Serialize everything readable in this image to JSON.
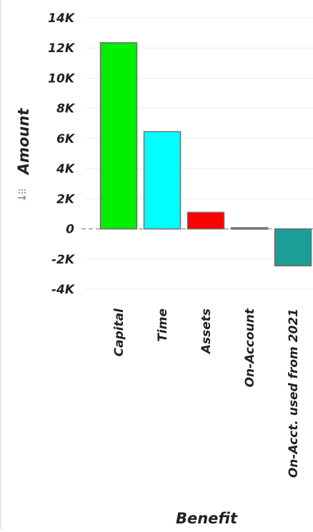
{
  "chart_data": {
    "type": "bar",
    "title": "",
    "xlabel": "Benefit",
    "ylabel": "Amount",
    "categories": [
      "Capital",
      "Time",
      "Assets",
      "On-Account",
      "On-Acct. used from 2021"
    ],
    "values": [
      12350,
      6450,
      1100,
      80,
      -2450
    ],
    "colors": [
      "#00ee00",
      "#00ffff",
      "#ff0000",
      "#808080",
      "#1a9e96"
    ],
    "ylim": [
      -4000,
      14000
    ],
    "yticks": [
      -4000,
      -2000,
      0,
      2000,
      4000,
      6000,
      8000,
      10000,
      12000,
      14000
    ],
    "ytick_labels": [
      "-4K",
      "-2K",
      "0",
      "2K",
      "4K",
      "6K",
      "8K",
      "10K",
      "12K",
      "14K"
    ],
    "grid": true,
    "legend": "none"
  },
  "icons": {
    "axis_menu": "drag-handle-icon"
  }
}
